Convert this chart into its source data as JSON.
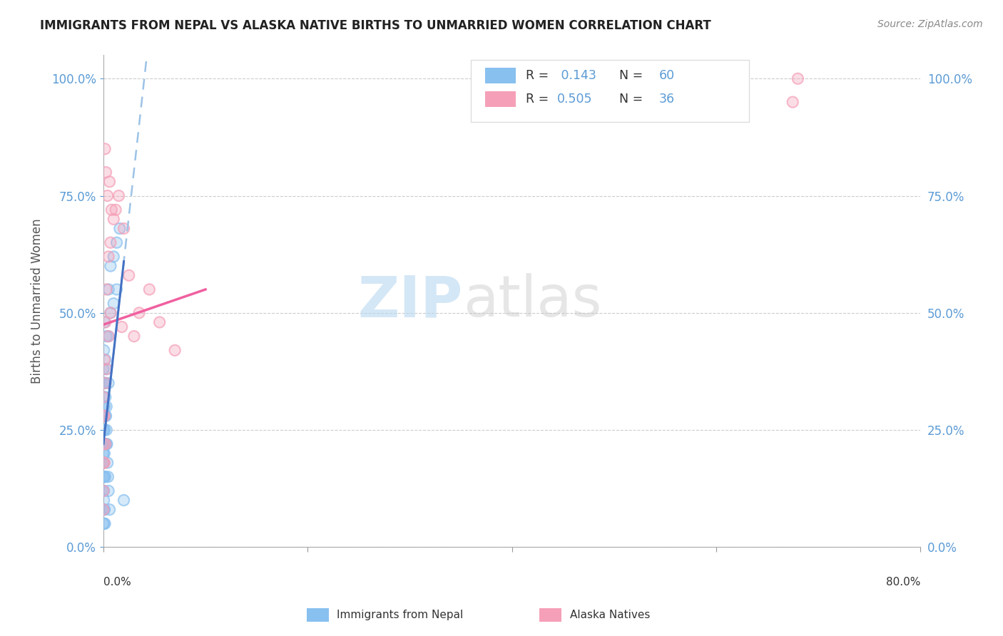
{
  "title": "IMMIGRANTS FROM NEPAL VS ALASKA NATIVE BIRTHS TO UNMARRIED WOMEN CORRELATION CHART",
  "source_text": "Source: ZipAtlas.com",
  "ylabel": "Births to Unmarried Women",
  "xlim": [
    0.0,
    80.0
  ],
  "ylim": [
    0.0,
    105.0
  ],
  "yticks": [
    0,
    25,
    50,
    75,
    100
  ],
  "ytick_labels": [
    "0.0%",
    "25.0%",
    "50.0%",
    "75.0%",
    "100.0%"
  ],
  "xtick_left": "0.0%",
  "xtick_right": "80.0%",
  "legend_label1": "Immigrants from Nepal",
  "legend_label2": "Alaska Natives",
  "watermark_zip": "ZIP",
  "watermark_atlas": "atlas",
  "blue_color": "#88C0F0",
  "pink_color": "#F5A0B8",
  "trend_blue_solid_color": "#4472C4",
  "trend_blue_dash_color": "#9DC3E6",
  "trend_pink_color": "#F060A0",
  "r1_text": "R = ",
  "r1_val": " 0.143",
  "n1_text": "N = ",
  "n1_val": "60",
  "r2_text": "R = ",
  "r2_val": "0.505",
  "n2_text": "N = ",
  "n2_val": "36",
  "blue_scatter_x": [
    0.0,
    0.0,
    0.0,
    0.0,
    0.0,
    0.0,
    0.0,
    0.0,
    0.0,
    0.0,
    0.05,
    0.05,
    0.05,
    0.05,
    0.05,
    0.05,
    0.05,
    0.05,
    0.1,
    0.1,
    0.1,
    0.1,
    0.1,
    0.1,
    0.2,
    0.2,
    0.2,
    0.2,
    0.2,
    0.3,
    0.3,
    0.3,
    0.3,
    0.5,
    0.5,
    0.5,
    0.7,
    0.7,
    1.0,
    1.0,
    1.3,
    1.3,
    1.6,
    2.0,
    0.0,
    0.0,
    0.05,
    0.05,
    0.1,
    0.1,
    0.15,
    0.15,
    0.2,
    0.25,
    0.3,
    0.35,
    0.4,
    0.45,
    0.5,
    0.6
  ],
  "blue_scatter_y": [
    30.0,
    28.0,
    25.0,
    22.0,
    20.0,
    18.0,
    15.0,
    12.0,
    8.0,
    5.0,
    32.0,
    28.0,
    25.0,
    22.0,
    18.0,
    15.0,
    10.0,
    5.0,
    35.0,
    30.0,
    25.0,
    20.0,
    15.0,
    8.0,
    40.0,
    35.0,
    28.0,
    22.0,
    15.0,
    45.0,
    38.0,
    30.0,
    22.0,
    55.0,
    45.0,
    35.0,
    60.0,
    50.0,
    62.0,
    52.0,
    65.0,
    55.0,
    68.0,
    10.0,
    38.0,
    20.0,
    42.0,
    12.0,
    48.0,
    8.0,
    35.0,
    5.0,
    32.0,
    28.0,
    25.0,
    22.0,
    18.0,
    15.0,
    12.0,
    8.0
  ],
  "pink_scatter_x": [
    0.0,
    0.0,
    0.0,
    0.0,
    0.0,
    0.0,
    0.1,
    0.1,
    0.1,
    0.2,
    0.2,
    0.2,
    0.3,
    0.3,
    0.5,
    0.5,
    0.7,
    0.7,
    1.0,
    1.2,
    1.5,
    2.0,
    2.5,
    3.5,
    4.5,
    5.5,
    7.0,
    0.15,
    0.25,
    0.4,
    0.6,
    0.8,
    1.8,
    3.0,
    68.0,
    67.5
  ],
  "pink_scatter_y": [
    32.0,
    28.0,
    22.0,
    18.0,
    12.0,
    8.0,
    40.0,
    28.0,
    18.0,
    48.0,
    35.0,
    22.0,
    55.0,
    38.0,
    62.0,
    45.0,
    65.0,
    50.0,
    70.0,
    72.0,
    75.0,
    68.0,
    58.0,
    50.0,
    55.0,
    48.0,
    42.0,
    85.0,
    80.0,
    75.0,
    78.0,
    72.0,
    47.0,
    45.0,
    100.0,
    95.0
  ],
  "background_color": "#ffffff",
  "grid_color": "#cccccc"
}
